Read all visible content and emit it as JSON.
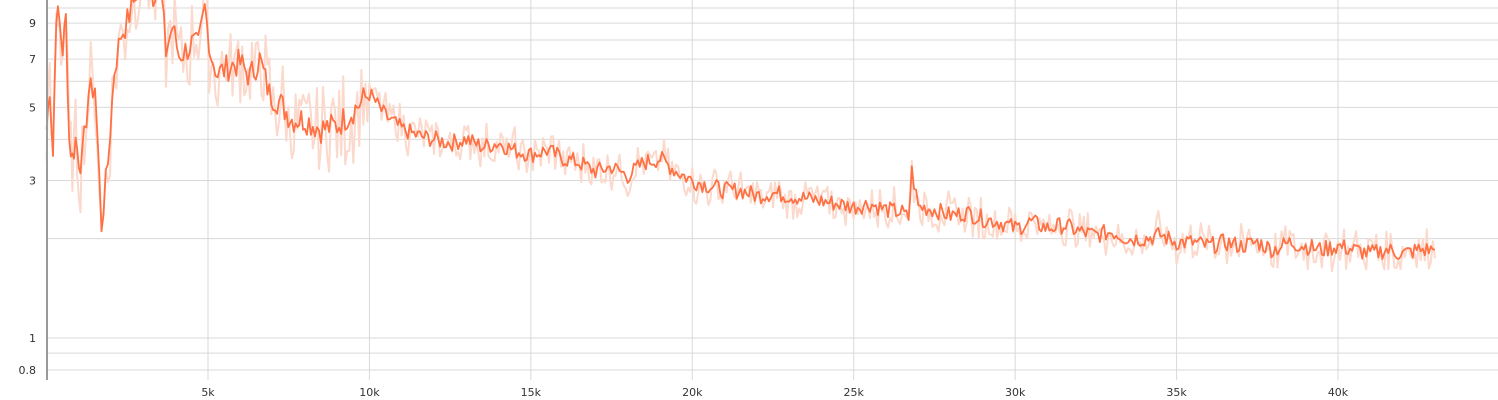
{
  "chart_data": {
    "type": "line",
    "scale_y": "log",
    "xlim": [
      0,
      45000
    ],
    "ylim": [
      0.72,
      18
    ],
    "grid": true,
    "x_ticks": [
      {
        "value": 5000,
        "label": "5k"
      },
      {
        "value": 10000,
        "label": "10k"
      },
      {
        "value": 15000,
        "label": "15k"
      },
      {
        "value": 20000,
        "label": "20k"
      },
      {
        "value": 25000,
        "label": "25k"
      },
      {
        "value": 30000,
        "label": "30k"
      },
      {
        "value": 35000,
        "label": "35k"
      },
      {
        "value": 40000,
        "label": "40k"
      }
    ],
    "y_ticks": [
      {
        "value": 0.8,
        "label": "0.8"
      },
      {
        "value": 1,
        "label": "1"
      },
      {
        "value": 3,
        "label": "3"
      },
      {
        "value": 5,
        "label": "5"
      },
      {
        "value": 7,
        "label": "7"
      },
      {
        "value": 9,
        "label": "9"
      }
    ],
    "y_minor_gridlines": [
      0.9,
      2,
      4,
      6,
      8,
      10
    ],
    "colors": {
      "smoothed": "#ff7043",
      "raw": "#fbd9cc",
      "grid": "#d9d9d9",
      "axis": "#9a9a9a",
      "text": "#333333"
    },
    "series": [
      {
        "role": "smoothed",
        "x": [
          0,
          100,
          200,
          300,
          400,
          500,
          600,
          700,
          800,
          900,
          1000,
          1100,
          1300,
          1500,
          1700,
          1900,
          2100,
          2300,
          2500,
          2700,
          2900,
          3100,
          3300,
          3500,
          3700,
          3900,
          4100,
          4300,
          4500,
          4700,
          4900,
          5100,
          5300,
          5500,
          5700,
          6000,
          6300,
          6600,
          6900,
          7200,
          7600,
          8000,
          8500,
          9000,
          9500,
          10000,
          10500,
          11000,
          11500,
          12000,
          12500,
          13000,
          13500,
          14000,
          14500,
          15000,
          15500,
          16000,
          16500,
          17000,
          17500,
          18000,
          18500,
          19000,
          19500,
          20000,
          20500,
          21000,
          21500,
          22000,
          22500,
          23000,
          23500,
          24000,
          24500,
          25000,
          25500,
          26000,
          26500,
          26700,
          26800,
          27000,
          27500,
          28000,
          28500,
          29000,
          29500,
          30000,
          30500,
          31000,
          31500,
          32000,
          32500,
          33000,
          33500,
          34000,
          34500,
          35000,
          35500,
          36000,
          36500,
          37000,
          37500,
          38000,
          38500,
          39000,
          39500,
          40000,
          40500,
          41000,
          41500,
          42000,
          42500,
          43000
        ],
        "y": [
          4.3,
          5.8,
          3.6,
          9.8,
          9.0,
          7.5,
          9.3,
          4.0,
          3.5,
          4.0,
          3.5,
          3.4,
          5.5,
          5.8,
          2.2,
          3.4,
          6.5,
          8.3,
          9.1,
          10.5,
          12.5,
          13.5,
          11.0,
          12.5,
          7.4,
          8.8,
          7.2,
          7.4,
          7.8,
          7.6,
          10.0,
          7.2,
          6.3,
          6.5,
          6.7,
          6.8,
          6.2,
          7.0,
          5.5,
          5.2,
          4.6,
          4.6,
          4.3,
          4.4,
          4.9,
          5.5,
          4.7,
          4.3,
          4.1,
          4.0,
          3.9,
          4.0,
          3.8,
          3.9,
          3.7,
          3.6,
          3.7,
          3.5,
          3.4,
          3.2,
          3.3,
          3.1,
          3.4,
          3.5,
          3.2,
          3.0,
          2.9,
          2.8,
          2.8,
          2.7,
          2.75,
          2.7,
          2.65,
          2.6,
          2.55,
          2.5,
          2.55,
          2.45,
          2.4,
          2.3,
          3.2,
          2.5,
          2.45,
          2.35,
          2.4,
          2.3,
          2.25,
          2.15,
          2.25,
          2.15,
          2.2,
          2.1,
          2.05,
          2.1,
          2.0,
          2.0,
          2.05,
          1.95,
          1.95,
          1.9,
          1.95,
          1.9,
          1.95,
          1.85,
          1.95,
          1.9,
          1.85,
          1.9,
          1.85,
          1.8,
          1.85,
          1.8,
          1.85,
          1.85
        ]
      }
    ]
  }
}
